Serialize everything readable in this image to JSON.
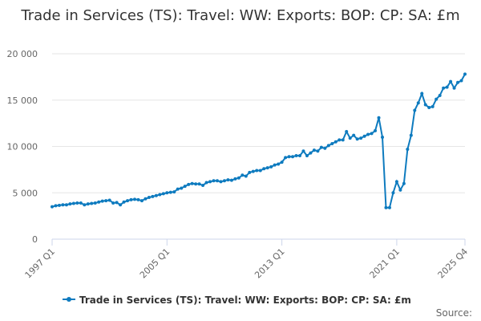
{
  "chart_data": {
    "type": "line",
    "title": "Trade in Services (TS): Travel: WW: Exports: BOP: CP: SA: £m",
    "source": "Source:",
    "categories": [
      "1997 Q1",
      null,
      null,
      null,
      null,
      null,
      null,
      null,
      null,
      null,
      null,
      null,
      null,
      null,
      null,
      null,
      null,
      null,
      null,
      null,
      null,
      null,
      null,
      null,
      null,
      null,
      null,
      null,
      null,
      null,
      null,
      null,
      "2005 Q1",
      null,
      null,
      null,
      null,
      null,
      null,
      null,
      null,
      null,
      null,
      null,
      null,
      null,
      null,
      null,
      null,
      null,
      null,
      null,
      null,
      null,
      null,
      null,
      null,
      null,
      null,
      null,
      null,
      null,
      null,
      null,
      "2013 Q1",
      null,
      null,
      null,
      null,
      null,
      null,
      null,
      null,
      null,
      null,
      null,
      null,
      null,
      null,
      null,
      null,
      null,
      null,
      null,
      null,
      null,
      null,
      null,
      null,
      null,
      null,
      null,
      null,
      null,
      null,
      null,
      "2021 Q1",
      null,
      null,
      null,
      null,
      null,
      null,
      null,
      null,
      null,
      null,
      null,
      null,
      null,
      null,
      null,
      null,
      null,
      null,
      "2025 Q4"
    ],
    "series": [
      {
        "name": "Trade in Services (TS): Travel: WW: Exports: BOP: CP: SA: £m",
        "color": "#0e7bbf",
        "values": [
          3500,
          3600,
          3650,
          3700,
          3700,
          3800,
          3850,
          3900,
          3900,
          3700,
          3800,
          3850,
          3900,
          4000,
          4100,
          4150,
          4200,
          3900,
          3950,
          3700,
          4000,
          4150,
          4250,
          4300,
          4250,
          4150,
          4350,
          4500,
          4600,
          4700,
          4800,
          4900,
          5000,
          5050,
          5100,
          5400,
          5500,
          5700,
          5900,
          6000,
          5950,
          5950,
          5800,
          6100,
          6200,
          6300,
          6300,
          6200,
          6300,
          6400,
          6350,
          6500,
          6600,
          6900,
          6800,
          7200,
          7300,
          7400,
          7400,
          7600,
          7700,
          7800,
          8000,
          8100,
          8300,
          8800,
          8900,
          8900,
          9000,
          9000,
          9500,
          9000,
          9300,
          9600,
          9500,
          9900,
          9800,
          10100,
          10300,
          10500,
          10700,
          10700,
          11600,
          10900,
          11200,
          10800,
          10900,
          11100,
          11300,
          11400,
          11700,
          13100,
          11000,
          3400,
          3400,
          5000,
          6200,
          5300,
          6000,
          9700,
          11200,
          13900,
          14700,
          15700,
          14500,
          14200,
          14300,
          15100,
          15500,
          16300,
          16400,
          17000,
          16300,
          16900,
          17100,
          17800
        ]
      }
    ],
    "ylim": [
      0,
      20000
    ],
    "yticks": [
      0,
      {
        "value": 5000,
        "label": "5 000"
      },
      {
        "value": 10000,
        "label": "10 000"
      },
      {
        "value": 15000,
        "label": "15 000"
      },
      {
        "value": 20000,
        "label": "20 000"
      }
    ],
    "grid": true
  }
}
